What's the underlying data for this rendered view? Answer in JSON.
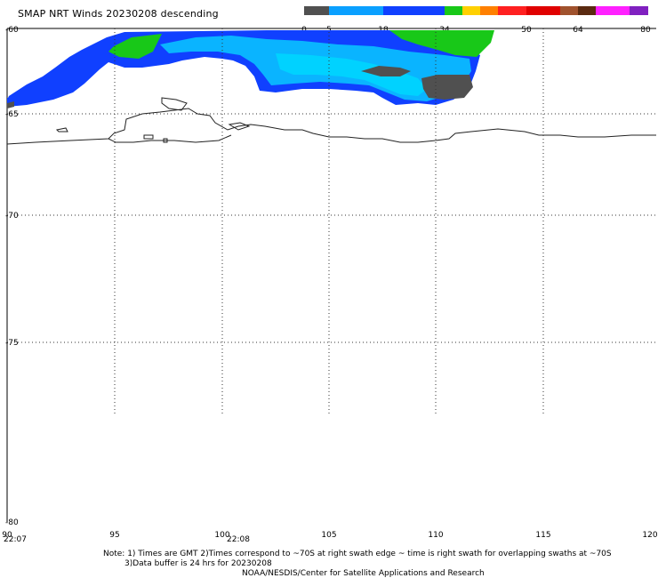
{
  "title": "SMAP NRT Winds  20230208 descending",
  "colorbar": {
    "labels": [
      "0",
      "5",
      "18",
      "34",
      "50",
      "64",
      "80"
    ],
    "colors": [
      "#505050",
      "#0aa0ff",
      "#1040ff",
      "#18c818",
      "#ffd000",
      "#ff8000",
      "#ff2020",
      "#e00000",
      "#a0522d",
      "#5a2a10",
      "#ff20ff",
      "#8020c0"
    ]
  },
  "map": {
    "lat_labels": [
      "-60",
      "-65",
      "-70",
      "-75",
      "-80"
    ],
    "lon_labels": [
      "90",
      "95",
      "100",
      "105",
      "110",
      "115",
      "120"
    ],
    "time_labels": [
      "22:07",
      "22:08"
    ]
  },
  "notes": {
    "line1": "Note: 1) Times are GMT 2)Times correspond to ~70S at right swath edge ~ time is right swath for overlapping swaths at ~70S",
    "line2": "3)Data buffer is 24 hrs for 20230208",
    "line3": "NOAA/NESDIS/Center for Satellite Applications and Research"
  }
}
